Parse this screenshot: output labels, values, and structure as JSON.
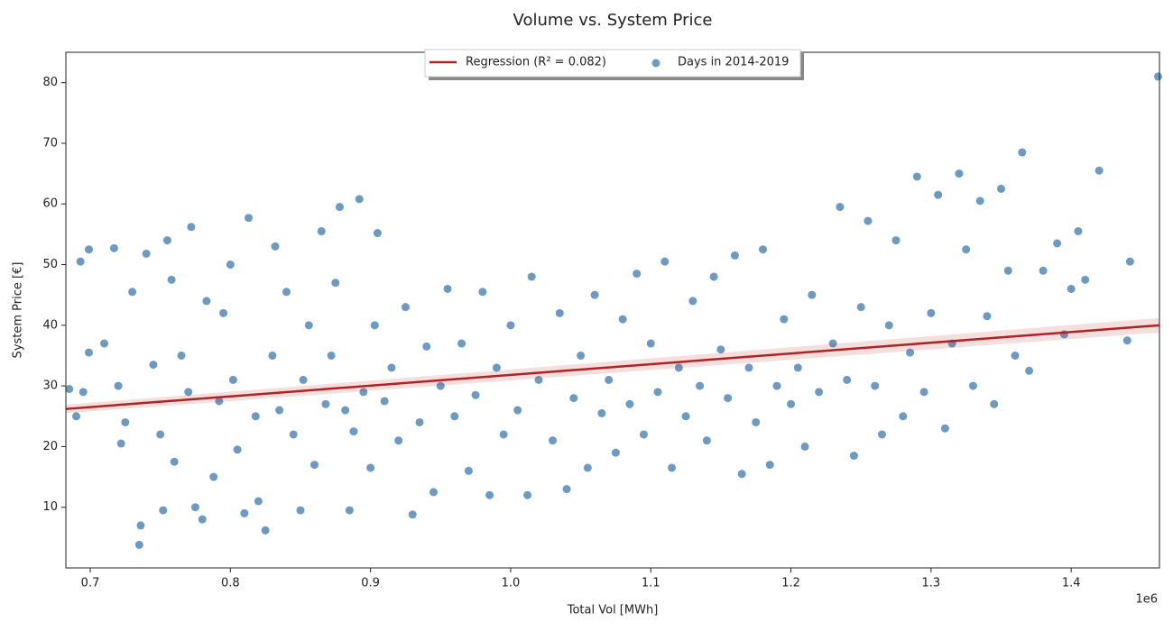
{
  "chart_data": {
    "type": "scatter",
    "title": "Volume vs. System Price",
    "x_label": "Total Vol [MWh]",
    "y_label": "System Price [€]",
    "x_offset_label": "1e6",
    "xlim": [
      0.6826,
      1.463
    ],
    "ylim": [
      0,
      85
    ],
    "xticks": [
      0.7,
      0.8,
      0.9,
      {
        "value": 1.0,
        "label": "1.0"
      },
      1.1,
      1.2,
      1.3,
      1.4
    ],
    "yticks": [
      10,
      20,
      30,
      40,
      50,
      60,
      70,
      80
    ],
    "grid": false,
    "legend": "upper center",
    "series": [
      {
        "name": "Regression (R² = 0.082)",
        "color": "#b22222",
        "type": "line",
        "x": [
          0.6826,
          1.463
        ],
        "values": [
          26.2,
          40.0
        ],
        "ci_lower": [
          25.5,
          38.8
        ],
        "ci_upper": [
          26.9,
          41.2
        ]
      },
      {
        "name": "Days in 2014-2019",
        "color": "#4682b4",
        "type": "scatter",
        "x": [
          0.685,
          0.69,
          0.693,
          0.695,
          0.699,
          0.699,
          0.71,
          0.717,
          0.72,
          0.722,
          0.725,
          0.73,
          0.735,
          0.736,
          0.74,
          0.745,
          0.75,
          0.752,
          0.755,
          0.758,
          0.76,
          0.765,
          0.77,
          0.772,
          0.775,
          0.78,
          0.783,
          0.788,
          0.792,
          0.795,
          0.8,
          0.802,
          0.805,
          0.81,
          0.813,
          0.818,
          0.82,
          0.825,
          0.83,
          0.832,
          0.835,
          0.84,
          0.845,
          0.85,
          0.852,
          0.856,
          0.86,
          0.865,
          0.868,
          0.872,
          0.875,
          0.878,
          0.882,
          0.885,
          0.888,
          0.892,
          0.895,
          0.9,
          0.903,
          0.905,
          0.91,
          0.915,
          0.92,
          0.925,
          0.93,
          0.935,
          0.94,
          0.945,
          0.95,
          0.955,
          0.96,
          0.965,
          0.97,
          0.975,
          0.98,
          0.985,
          0.99,
          0.995,
          1.0,
          1.005,
          1.012,
          1.015,
          1.02,
          1.03,
          1.035,
          1.04,
          1.045,
          1.05,
          1.055,
          1.06,
          1.065,
          1.07,
          1.075,
          1.08,
          1.085,
          1.09,
          1.095,
          1.1,
          1.105,
          1.11,
          1.115,
          1.12,
          1.125,
          1.13,
          1.135,
          1.14,
          1.145,
          1.15,
          1.155,
          1.16,
          1.165,
          1.17,
          1.175,
          1.18,
          1.185,
          1.19,
          1.195,
          1.2,
          1.205,
          1.21,
          1.215,
          1.22,
          1.23,
          1.235,
          1.24,
          1.245,
          1.25,
          1.255,
          1.26,
          1.265,
          1.27,
          1.275,
          1.28,
          1.285,
          1.29,
          1.295,
          1.3,
          1.305,
          1.31,
          1.315,
          1.32,
          1.325,
          1.33,
          1.335,
          1.34,
          1.345,
          1.35,
          1.355,
          1.36,
          1.365,
          1.37,
          1.38,
          1.39,
          1.395,
          1.4,
          1.405,
          1.41,
          1.42,
          1.44,
          1.442,
          1.462
        ],
        "values": [
          29.5,
          25,
          50.5,
          29,
          52.5,
          35.5,
          37,
          52.7,
          30,
          20.5,
          24,
          45.5,
          3.8,
          7,
          51.8,
          33.5,
          22,
          9.5,
          54,
          47.5,
          17.5,
          35,
          29,
          56.2,
          10,
          8,
          44,
          15,
          27.5,
          42,
          50,
          31,
          19.5,
          9,
          57.7,
          25,
          11,
          6.2,
          35,
          53,
          26,
          45.5,
          22,
          9.5,
          31,
          40,
          17,
          55.5,
          27,
          35,
          47,
          59.5,
          26,
          9.5,
          22.5,
          60.8,
          29,
          16.5,
          40,
          55.2,
          27.5,
          33,
          21,
          43,
          8.8,
          24,
          36.5,
          12.5,
          30,
          46,
          25,
          37,
          16,
          28.5,
          45.5,
          12,
          33,
          22,
          40,
          26,
          12,
          48,
          31,
          21,
          42,
          13,
          28,
          35,
          16.5,
          45,
          25.5,
          31,
          19,
          41,
          27,
          48.5,
          22,
          37,
          29,
          50.5,
          16.5,
          33,
          25,
          44,
          30,
          21,
          48,
          36,
          28,
          51.5,
          15.5,
          33,
          24,
          52.5,
          17,
          30,
          41,
          27,
          33,
          20,
          45,
          29,
          37,
          59.5,
          31,
          18.5,
          43,
          57.2,
          30,
          22,
          40,
          54,
          25,
          35.5,
          64.5,
          29,
          42,
          61.5,
          23,
          37,
          65,
          52.5,
          30,
          60.5,
          41.5,
          27,
          62.5,
          49,
          35,
          68.5,
          32.5,
          49,
          53.5,
          38.5,
          46,
          55.5,
          47.5,
          65.5,
          37.5,
          50.5,
          81
        ]
      }
    ]
  }
}
